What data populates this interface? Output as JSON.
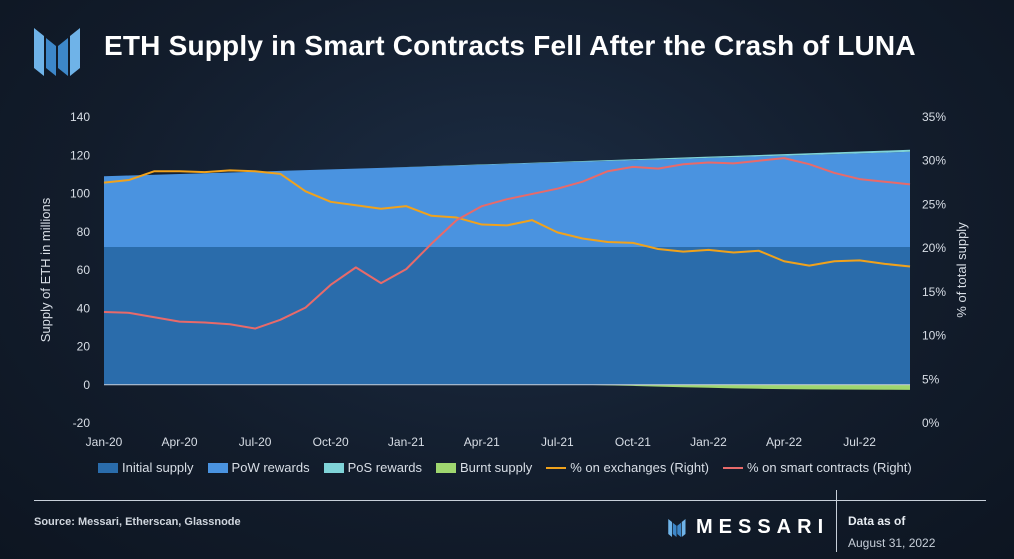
{
  "header": {
    "title": "ETH Supply in Smart Contracts Fell After the Crash of LUNA",
    "logo_icon": "messari-logo-icon"
  },
  "footer": {
    "source": "Source: Messari, Etherscan, Glassnode",
    "brand": "MESSARI",
    "as_of_label": "Data as of",
    "as_of_date": "August 31, 2022"
  },
  "chart_data": {
    "type": "area",
    "title": "ETH Supply in Smart Contracts Fell After the Crash of LUNA",
    "ylabel": "Supply of ETH in millions",
    "y2label": "% of total supply",
    "ylim": [
      -20,
      140
    ],
    "y2lim": [
      0,
      35
    ],
    "yticks": [
      "140",
      "120",
      "100",
      "80",
      "60",
      "40",
      "20",
      "0",
      "-20"
    ],
    "y2ticks": [
      "35%",
      "30%",
      "25%",
      "20%",
      "15%",
      "10%",
      "5%",
      "0%"
    ],
    "xticks": [
      "Jan-20",
      "Apr-20",
      "Jul-20",
      "Oct-20",
      "Jan-21",
      "Apr-21",
      "Jul-21",
      "Oct-21",
      "Jan-22",
      "Apr-22",
      "Jul-22"
    ],
    "x_dates": [
      "2020-01",
      "2020-02",
      "2020-03",
      "2020-04",
      "2020-05",
      "2020-06",
      "2020-07",
      "2020-08",
      "2020-09",
      "2020-10",
      "2020-11",
      "2020-12",
      "2021-01",
      "2021-02",
      "2021-03",
      "2021-04",
      "2021-05",
      "2021-06",
      "2021-07",
      "2021-08",
      "2021-09",
      "2021-10",
      "2021-11",
      "2021-12",
      "2022-01",
      "2022-02",
      "2022-03",
      "2022-04",
      "2022-05",
      "2022-06",
      "2022-07",
      "2022-08",
      "2022-09"
    ],
    "legend_position": "bottom",
    "series": [
      {
        "name": "Initial supply",
        "axis": "left",
        "kind": "area",
        "color": "#2a6cab",
        "values": [
          72,
          72,
          72,
          72,
          72,
          72,
          72,
          72,
          72,
          72,
          72,
          72,
          72,
          72,
          72,
          72,
          72,
          72,
          72,
          72,
          72,
          72,
          72,
          72,
          72,
          72,
          72,
          72,
          72,
          72,
          72,
          72,
          72
        ]
      },
      {
        "name": "PoW rewards",
        "axis": "left",
        "kind": "area",
        "color": "#4a93e0",
        "values": [
          37,
          37.4,
          37.8,
          38.2,
          38.6,
          39,
          39.4,
          39.8,
          40.2,
          40.6,
          41,
          41.4,
          41.8,
          42.2,
          42.6,
          43,
          43.4,
          43.8,
          44.2,
          44.6,
          45,
          45.4,
          45.8,
          46.2,
          46.6,
          47,
          47.4,
          47.8,
          48.2,
          48.6,
          49,
          49.4,
          49.8
        ]
      },
      {
        "name": "PoS rewards",
        "axis": "left",
        "kind": "area",
        "color": "#7fd3d8",
        "values": [
          0,
          0,
          0,
          0,
          0,
          0,
          0,
          0,
          0,
          0,
          0,
          0,
          0.05,
          0.1,
          0.15,
          0.2,
          0.25,
          0.3,
          0.35,
          0.4,
          0.45,
          0.5,
          0.55,
          0.6,
          0.65,
          0.7,
          0.75,
          0.8,
          0.85,
          0.9,
          0.95,
          1,
          1.05
        ]
      },
      {
        "name": "Burnt supply",
        "axis": "left",
        "kind": "area",
        "color": "#9fd66f",
        "values": [
          0,
          0,
          0,
          0,
          0,
          0,
          0,
          0,
          0,
          0,
          0,
          0,
          0,
          0,
          0,
          0,
          0,
          0,
          0,
          0,
          -0.3,
          -0.6,
          -1,
          -1.3,
          -1.6,
          -1.9,
          -2.1,
          -2.3,
          -2.4,
          -2.5,
          -2.55,
          -2.6,
          -2.65
        ]
      },
      {
        "name": "% on exchanges (Right)",
        "axis": "right",
        "kind": "line",
        "color": "#f0a21c",
        "values": [
          27.5,
          27.8,
          28.8,
          28.8,
          28.7,
          28.9,
          28.8,
          28.5,
          26.5,
          25.3,
          24.9,
          24.5,
          24.8,
          23.7,
          23.5,
          22.7,
          22.6,
          23.2,
          21.8,
          21.1,
          20.7,
          20.6,
          19.9,
          19.6,
          19.8,
          19.5,
          19.7,
          18.5,
          18.0,
          18.5,
          18.6,
          18.2,
          17.9
        ]
      },
      {
        "name": "% on smart contracts (Right)",
        "axis": "right",
        "kind": "line",
        "color": "#e86a6a",
        "values": [
          12.7,
          12.6,
          12.1,
          11.6,
          11.5,
          11.3,
          10.8,
          11.8,
          13.2,
          15.8,
          17.8,
          16.0,
          17.6,
          20.5,
          23.2,
          24.8,
          25.6,
          26.2,
          26.8,
          27.6,
          28.8,
          29.3,
          29.1,
          29.6,
          29.8,
          29.7,
          30.0,
          30.3,
          29.6,
          28.6,
          27.9,
          27.6,
          27.3
        ]
      }
    ]
  }
}
